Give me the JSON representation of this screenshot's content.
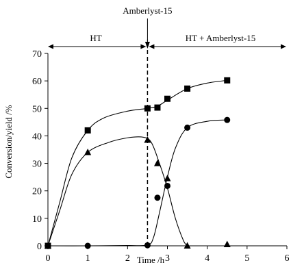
{
  "chart_data": {
    "type": "line",
    "title": "",
    "xlabel": "Time /h",
    "ylabel": "Conversion/yield /%",
    "xlim": [
      0,
      6
    ],
    "ylim": [
      0,
      70
    ],
    "x_ticks": [
      0,
      1,
      2,
      3,
      4,
      5,
      6
    ],
    "y_ticks": [
      0,
      10,
      20,
      30,
      40,
      50,
      60,
      70
    ],
    "grid": false,
    "legend": "none",
    "series": [
      {
        "marker": "square",
        "points": [
          [
            0,
            0
          ],
          [
            1,
            42
          ],
          [
            2.5,
            50
          ],
          [
            2.75,
            50.3
          ],
          [
            3,
            53.5
          ],
          [
            3.5,
            57.2
          ],
          [
            4.5,
            60.2
          ]
        ],
        "curve": [
          [
            0,
            0
          ],
          [
            0.3,
            16
          ],
          [
            0.6,
            32
          ],
          [
            1,
            42
          ],
          [
            1.4,
            46.5
          ],
          [
            2,
            49
          ],
          [
            2.5,
            50
          ],
          [
            2.75,
            50.8
          ],
          [
            3,
            53
          ],
          [
            3.5,
            57.2
          ],
          [
            4,
            59.2
          ],
          [
            4.5,
            60.2
          ]
        ]
      },
      {
        "marker": "triangle",
        "points": [
          [
            0,
            0
          ],
          [
            1,
            34
          ],
          [
            2.5,
            38.5
          ],
          [
            2.75,
            30
          ],
          [
            3,
            24.5
          ],
          [
            3.5,
            0
          ],
          [
            4.5,
            0.5
          ]
        ],
        "curve": [
          [
            0,
            0
          ],
          [
            0.3,
            13
          ],
          [
            0.6,
            26
          ],
          [
            1,
            34
          ],
          [
            1.5,
            37.5
          ],
          [
            2,
            39.3
          ],
          [
            2.4,
            39.5
          ],
          [
            2.6,
            37.5
          ],
          [
            2.8,
            30
          ],
          [
            3,
            21
          ],
          [
            3.2,
            10
          ],
          [
            3.4,
            2
          ],
          [
            3.5,
            0
          ]
        ]
      },
      {
        "marker": "circle",
        "points": [
          [
            0,
            0
          ],
          [
            1,
            0
          ],
          [
            2.5,
            0.2
          ],
          [
            2.75,
            17.5
          ],
          [
            3,
            21.8
          ],
          [
            3.5,
            43
          ],
          [
            4.5,
            45.8
          ]
        ],
        "curve": [
          [
            0,
            0
          ],
          [
            1,
            0
          ],
          [
            2,
            0.1
          ],
          [
            2.5,
            0.3
          ],
          [
            2.65,
            3
          ],
          [
            2.8,
            12
          ],
          [
            3,
            25
          ],
          [
            3.2,
            35.5
          ],
          [
            3.5,
            43
          ],
          [
            4,
            45.3
          ],
          [
            4.5,
            45.8
          ]
        ]
      }
    ],
    "annotations": {
      "catalyst_label": "Amberlyst-15",
      "switch_x": 2.5,
      "phase1_label": "HT",
      "phase1_range": [
        0,
        2.5
      ],
      "phase2_label": "HT + Amberlyst-15",
      "phase2_range": [
        2.5,
        6
      ]
    }
  }
}
